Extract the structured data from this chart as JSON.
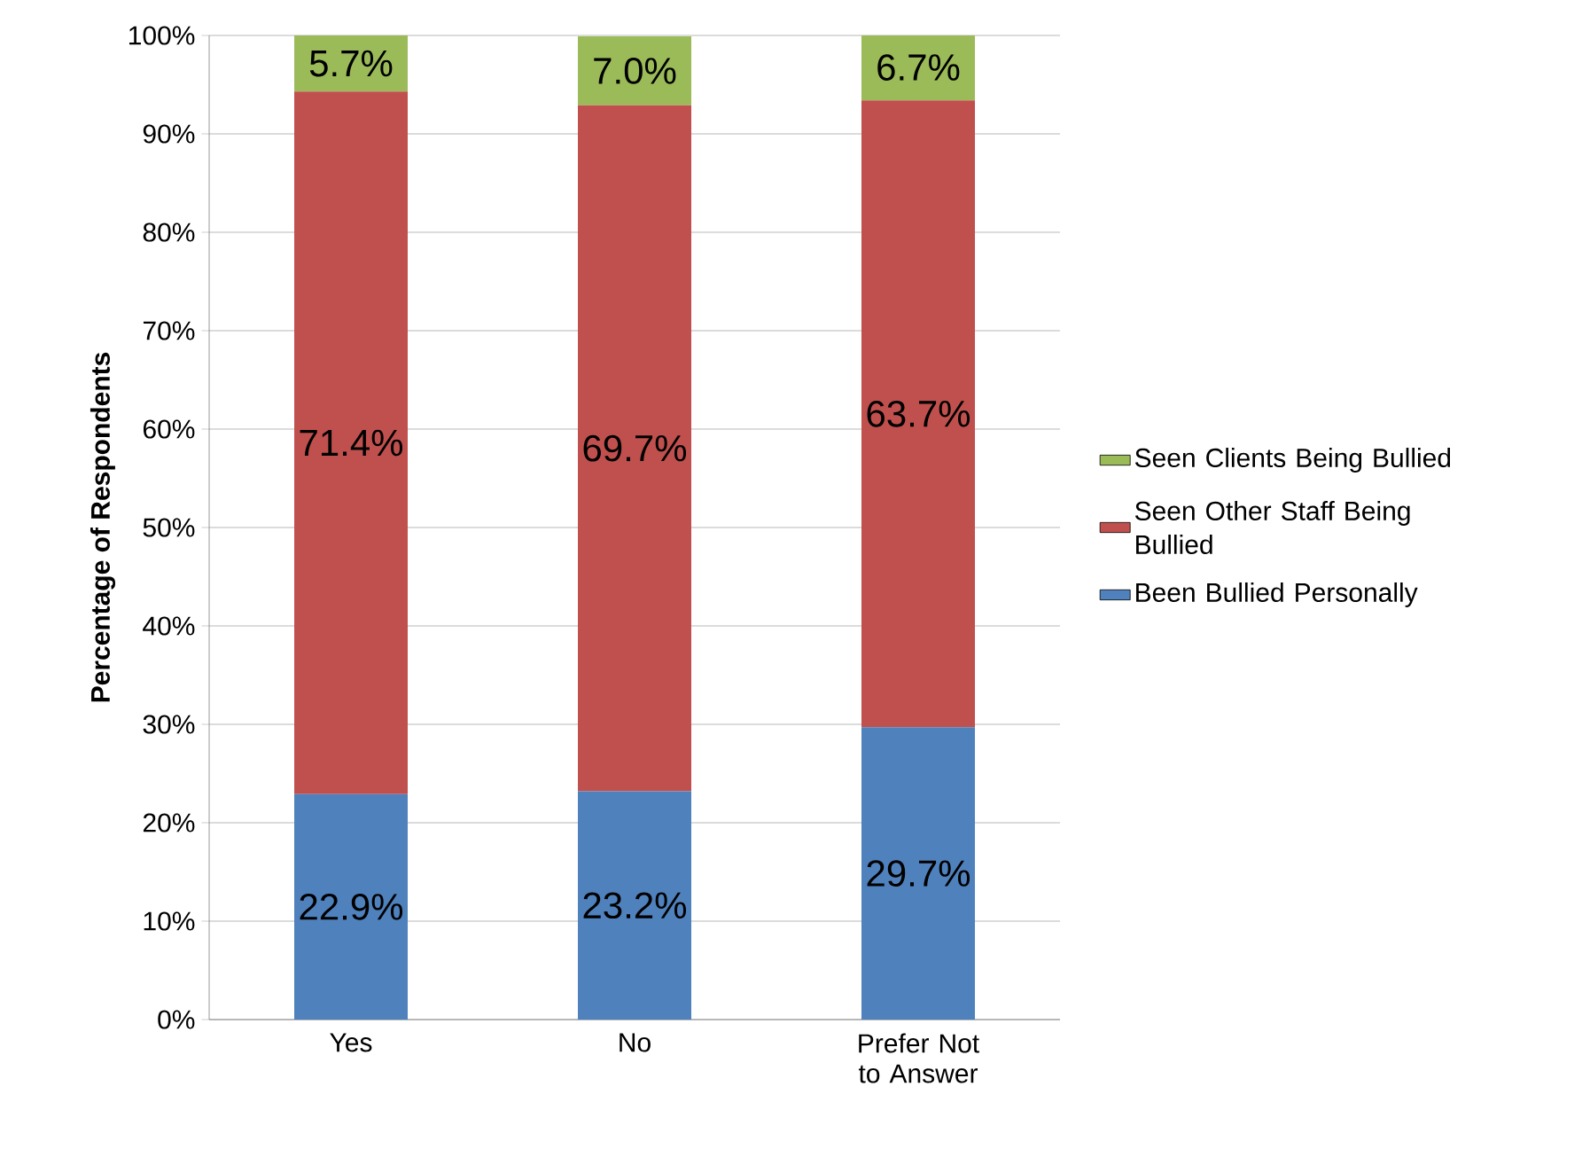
{
  "chart_data": {
    "type": "bar",
    "stacked": true,
    "ylabel": "Percentage of Respondents",
    "categories": [
      "Yes",
      "No",
      "Prefer Not to Answer"
    ],
    "series": [
      {
        "name": "Been Bullied Personally",
        "color": "#4f81bd",
        "values": [
          22.9,
          23.2,
          29.7
        ],
        "value_labels": [
          "22.9%",
          "23.2%",
          "29.7%"
        ]
      },
      {
        "name": "Seen Other Staff Being Bullied",
        "color": "#c0504d",
        "values": [
          71.4,
          69.7,
          63.7
        ],
        "value_labels": [
          "71.4%",
          "69.7%",
          "63.7%"
        ]
      },
      {
        "name": "Seen Clients Being Bullied",
        "color": "#9bbb59",
        "values": [
          5.7,
          7.0,
          6.7
        ],
        "value_labels": [
          "5.7%",
          "7.0%",
          "6.7%"
        ]
      }
    ],
    "ylim": [
      0,
      100
    ],
    "yticks": [
      {
        "value": 0,
        "label": "0%"
      },
      {
        "value": 10,
        "label": "10%"
      },
      {
        "value": 20,
        "label": "20%"
      },
      {
        "value": 30,
        "label": "30%"
      },
      {
        "value": 40,
        "label": "40%"
      },
      {
        "value": 50,
        "label": "50%"
      },
      {
        "value": 60,
        "label": "60%"
      },
      {
        "value": 70,
        "label": "70%"
      },
      {
        "value": 80,
        "label": "80%"
      },
      {
        "value": 90,
        "label": "90%"
      },
      {
        "value": 100,
        "label": "100%"
      }
    ],
    "grid": "y",
    "legend": "right"
  }
}
